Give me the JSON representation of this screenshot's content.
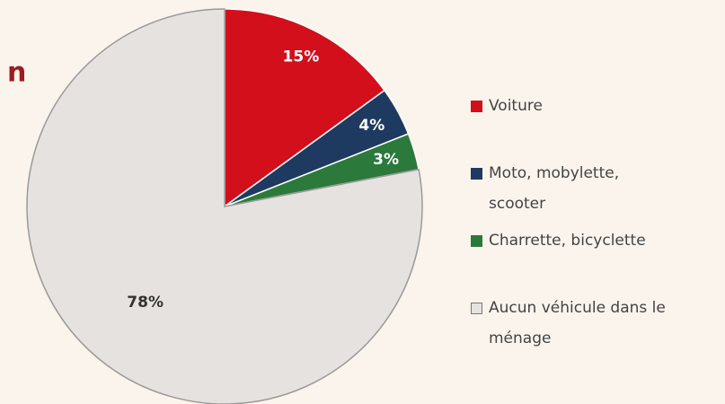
{
  "chart_data": {
    "type": "pie",
    "title": "n",
    "categories": [
      "Voiture",
      "Moto, mobylette, scooter",
      "Charrette, bicyclette",
      "Aucun véhicule dans le ménage"
    ],
    "values": [
      15,
      4,
      3,
      78
    ],
    "value_labels": [
      "15%",
      "4%",
      "3%",
      "78%"
    ],
    "colors": [
      "#d30f1b",
      "#1f3a60",
      "#2b7a3b",
      "#e6e2df"
    ],
    "label_colors": [
      "#ffffff",
      "#ffffff",
      "#ffffff",
      "#333333"
    ]
  }
}
